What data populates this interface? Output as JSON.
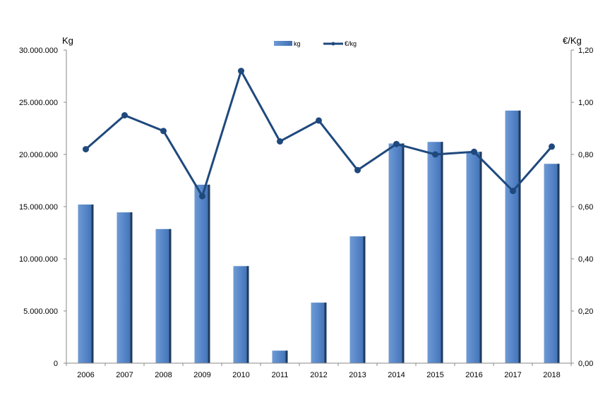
{
  "chart_data": {
    "type": "bar",
    "categories": [
      "2006",
      "2007",
      "2008",
      "2009",
      "2010",
      "2011",
      "2012",
      "2013",
      "2014",
      "2015",
      "2016",
      "2017",
      "2018"
    ],
    "series": [
      {
        "name": "kg",
        "type": "bar",
        "axis": "left",
        "color": "#4f81bd",
        "values": [
          15200000,
          14450000,
          12850000,
          17100000,
          9300000,
          1200000,
          5800000,
          12150000,
          21050000,
          21200000,
          20250000,
          24200000,
          19100000
        ]
      },
      {
        "name": "€/kg",
        "type": "line",
        "axis": "right",
        "color": "#1f497d",
        "values": [
          0.82,
          0.95,
          0.89,
          0.64,
          1.12,
          0.85,
          0.93,
          0.74,
          0.84,
          0.8,
          0.81,
          0.66,
          0.83
        ]
      }
    ],
    "ylabel": "Kg",
    "y2label": "€/Kg",
    "ylim": [
      0,
      30000000
    ],
    "y2lim": [
      0,
      1.2
    ],
    "yticks": [
      "0",
      "5.000.000",
      "10.000.000",
      "15.000.000",
      "20.000.000",
      "25.000.000",
      "30.000.000"
    ],
    "y2ticks": [
      "0,00",
      "0,20",
      "0,40",
      "0,60",
      "0,80",
      "1,00",
      "1,20"
    ],
    "legend": [
      "kg",
      "€/kg"
    ],
    "legend_position": "top-center",
    "grid": false
  }
}
